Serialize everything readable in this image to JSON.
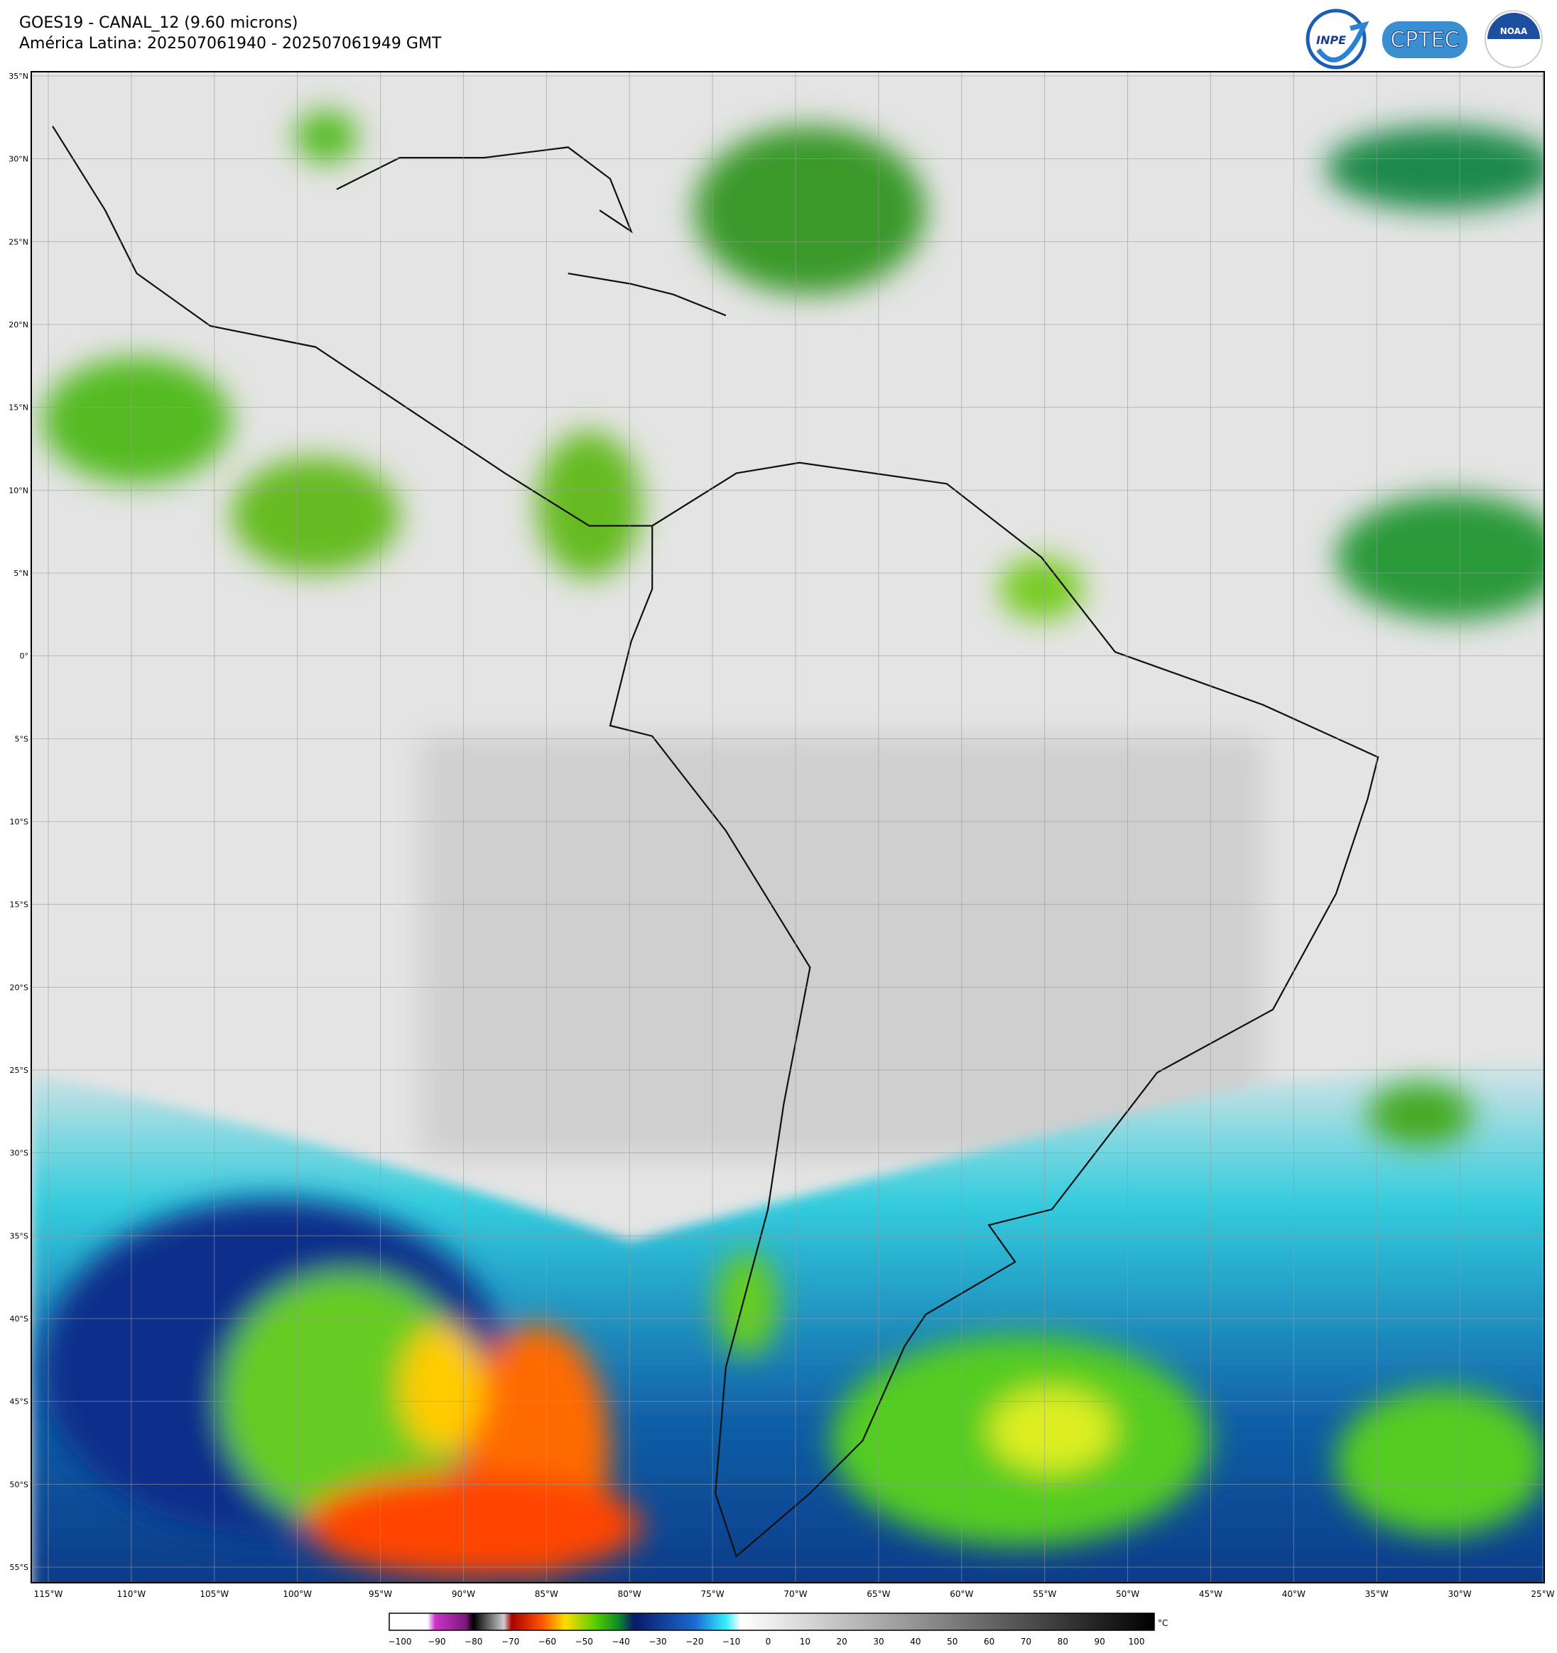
{
  "header": {
    "title": "GOES19 - CANAL_12 (9.60 microns)",
    "subtitle": "América Latina: 202507061940 - 202507061949 GMT"
  },
  "logos": {
    "inpe": "INPE",
    "cptec": "CPTEC",
    "noaa": "NOAA"
  },
  "map": {
    "lat_labels": [
      "35°N",
      "30°N",
      "25°N",
      "20°N",
      "15°N",
      "10°N",
      "5°N",
      "0°",
      "5°S",
      "10°S",
      "15°S",
      "20°S",
      "25°S",
      "30°S",
      "35°S",
      "40°S",
      "45°S",
      "50°S",
      "55°S"
    ],
    "lon_labels": [
      "115°W",
      "110°W",
      "105°W",
      "100°W",
      "95°W",
      "90°W",
      "85°W",
      "80°W",
      "75°W",
      "70°W",
      "65°W",
      "60°W",
      "55°W",
      "50°W",
      "45°W",
      "40°W",
      "35°W",
      "30°W",
      "25°W"
    ]
  },
  "colorbar": {
    "labels": [
      "−100",
      "−90",
      "−80",
      "−70",
      "−60",
      "−50",
      "−40",
      "−30",
      "−20",
      "−10",
      "0",
      "10",
      "20",
      "30",
      "40",
      "50",
      "60",
      "70",
      "80",
      "90",
      "100"
    ],
    "unit": "°C"
  }
}
